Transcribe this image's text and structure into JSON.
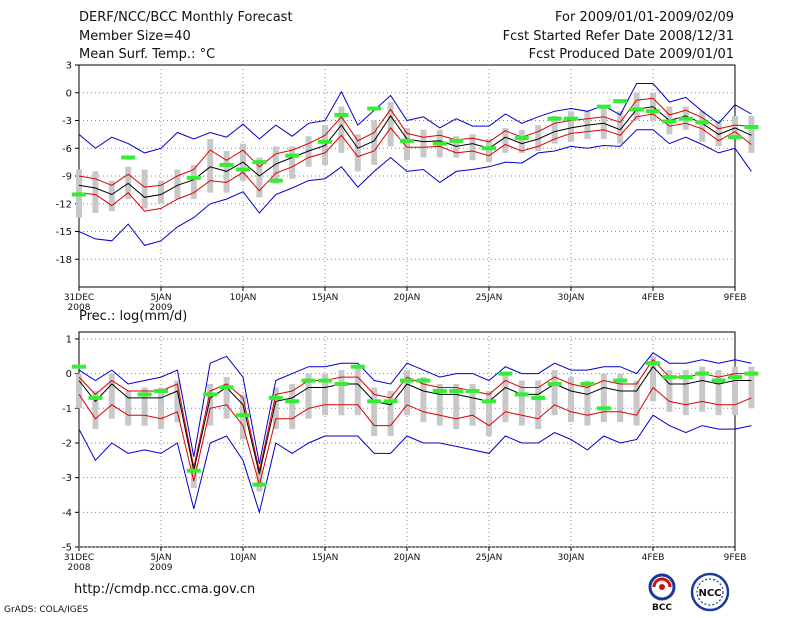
{
  "header": {
    "title": "DERF/NCC/BCC Monthly Forecast",
    "member_size": "Member Size=40",
    "variable_label": "Mean Surf. Temp.: °C",
    "period": "For 2009/01/01-2009/02/09",
    "fcst_started": "Fcst Started Refer Date 2008/12/31",
    "fcst_produced": "Fcst Produced Date 2009/01/01"
  },
  "footer": {
    "url": "http://cmdp.ncc.cma.gov.cn",
    "credit": "GrADS: COLA/IGES",
    "logo_bcc_text": "BCC",
    "logo_ncc_text": "NCC"
  },
  "colors": {
    "gray_bar": "#c8c8c8",
    "green_obs": "#33ee33",
    "blue_envelope": "#0000cc",
    "red_band": "#dd0000",
    "black_mean": "#000000",
    "grid": "#888888"
  },
  "chart_data": [
    {
      "type": "line",
      "title": "Mean Surf. Temp.: °C",
      "x_tick_labels": [
        "31DEC",
        "5JAN",
        "10JAN",
        "15JAN",
        "20JAN",
        "25JAN",
        "30JAN",
        "4FEB",
        "9FEB"
      ],
      "x_tick_days": [
        0,
        5,
        10,
        15,
        20,
        25,
        30,
        35,
        40
      ],
      "x_year_labels": [
        "2008",
        "2009"
      ],
      "ylim": [
        -21,
        3
      ],
      "y_ticks": [
        3,
        0,
        -3,
        -6,
        -9,
        -12,
        -15,
        -18
      ],
      "mean": [
        -10.0,
        -10.3,
        -11.0,
        -9.8,
        -11.3,
        -11.0,
        -10.0,
        -9.4,
        -8.0,
        -8.5,
        -7.5,
        -9.0,
        -7.7,
        -7.0,
        -6.3,
        -5.7,
        -3.5,
        -6.0,
        -5.2,
        -2.5,
        -5.0,
        -5.3,
        -5.2,
        -5.8,
        -5.5,
        -6.0,
        -4.8,
        -5.5,
        -5.0,
        -4.2,
        -3.8,
        -3.5,
        -3.3,
        -4.0,
        -1.8,
        -1.5,
        -3.0,
        -2.5,
        -3.3,
        -4.5,
        -3.8,
        -4.6
      ],
      "upper_red": [
        -9.0,
        -9.3,
        -10.0,
        -8.8,
        -10.2,
        -10.0,
        -9.0,
        -8.3,
        -6.2,
        -7.3,
        -6.2,
        -8.0,
        -6.6,
        -6.2,
        -5.5,
        -4.6,
        -2.6,
        -5.2,
        -4.3,
        -1.8,
        -4.4,
        -4.8,
        -4.6,
        -5.1,
        -4.9,
        -5.3,
        -4.1,
        -4.8,
        -4.2,
        -3.3,
        -3.0,
        -2.8,
        -2.6,
        -3.2,
        -0.8,
        -0.6,
        -2.4,
        -1.9,
        -2.7,
        -3.9,
        -3.5,
        -3.6
      ],
      "lower_red": [
        -10.8,
        -11.0,
        -12.2,
        -10.8,
        -12.8,
        -12.5,
        -11.5,
        -10.8,
        -9.5,
        -9.7,
        -8.6,
        -10.6,
        -8.7,
        -8.0,
        -7.0,
        -6.5,
        -4.6,
        -6.9,
        -6.3,
        -3.8,
        -5.9,
        -5.9,
        -5.8,
        -6.5,
        -6.3,
        -6.8,
        -5.6,
        -6.3,
        -5.8,
        -5.0,
        -4.4,
        -4.2,
        -4.0,
        -4.6,
        -2.6,
        -2.3,
        -3.6,
        -3.3,
        -3.9,
        -5.2,
        -4.2,
        -5.6
      ],
      "upper_blue": [
        -4.5,
        -6.0,
        -4.8,
        -5.5,
        -6.5,
        -6.0,
        -4.3,
        -5.0,
        -4.3,
        -4.8,
        -3.4,
        -5.0,
        -3.5,
        -4.7,
        -3.3,
        -3.0,
        0.1,
        -3.5,
        -1.9,
        -0.3,
        -3.0,
        -2.6,
        -3.8,
        -2.8,
        -3.6,
        -3.6,
        -2.3,
        -3.3,
        -2.6,
        -2.0,
        -1.7,
        -2.0,
        -1.4,
        -2.4,
        1.0,
        1.0,
        -1.0,
        -0.5,
        -2.0,
        -3.3,
        -1.3,
        -2.3
      ],
      "lower_blue": [
        -15.0,
        -15.8,
        -16.0,
        -14.2,
        -16.5,
        -16.0,
        -14.5,
        -13.5,
        -12.0,
        -11.5,
        -10.7,
        -13.0,
        -11.0,
        -10.3,
        -9.5,
        -9.3,
        -8.0,
        -10.2,
        -8.5,
        -7.0,
        -8.5,
        -8.3,
        -9.7,
        -8.5,
        -8.3,
        -8.0,
        -7.5,
        -7.6,
        -6.5,
        -6.3,
        -5.8,
        -6.0,
        -5.7,
        -5.8,
        -4.0,
        -4.0,
        -5.5,
        -4.8,
        -5.6,
        -6.5,
        -6.0,
        -8.5
      ],
      "box_high": [
        -8.3,
        -8.5,
        -9.5,
        -8.0,
        -8.3,
        -9.5,
        -8.3,
        -7.8,
        -5.0,
        -6.3,
        -5.5,
        -7.0,
        -5.8,
        -5.8,
        -4.7,
        -3.5,
        -1.5,
        -4.5,
        -3.0,
        -1.0,
        -3.8,
        -4.0,
        -4.0,
        -4.7,
        -4.5,
        -5.0,
        -3.8,
        -4.0,
        -3.5,
        -2.5,
        -2.0,
        -2.0,
        -1.5,
        -2.0,
        0.0,
        0.0,
        -1.5,
        -1.5,
        -2.0,
        -3.0,
        -2.5,
        -2.5
      ],
      "box_low": [
        -13.5,
        -13.0,
        -12.8,
        -11.5,
        -12.5,
        -12.0,
        -11.5,
        -11.5,
        -10.8,
        -10.8,
        -9.5,
        -11.3,
        -9.8,
        -9.3,
        -8.0,
        -7.8,
        -6.5,
        -8.5,
        -7.8,
        -5.8,
        -7.3,
        -7.0,
        -7.0,
        -7.0,
        -7.3,
        -7.5,
        -6.5,
        -6.5,
        -6.3,
        -5.5,
        -5.3,
        -5.0,
        -5.0,
        -5.5,
        -3.0,
        -3.0,
        -4.5,
        -4.0,
        -5.3,
        -5.8,
        -4.8,
        -6.5
      ],
      "observed": [
        -11.0,
        null,
        null,
        -7.0,
        null,
        null,
        null,
        -9.2,
        null,
        -7.8,
        -8.3,
        -7.5,
        -9.5,
        -6.8,
        null,
        -5.3,
        -2.4,
        null,
        -1.7,
        null,
        -5.2,
        null,
        -5.5,
        -5.2,
        null,
        -6.0,
        null,
        -4.9,
        null,
        -2.8,
        -2.8,
        null,
        -1.5,
        -0.9,
        -1.8,
        -2.0,
        -3.1,
        -2.8,
        -3.2,
        null,
        -4.8,
        -3.7
      ]
    },
    {
      "type": "line",
      "title": "Prec.: log(mm/d)",
      "x_tick_labels": [
        "31DEC",
        "5JAN",
        "10JAN",
        "15JAN",
        "20JAN",
        "25JAN",
        "30JAN",
        "4FEB",
        "9FEB"
      ],
      "x_tick_days": [
        0,
        5,
        10,
        15,
        20,
        25,
        30,
        35,
        40
      ],
      "x_year_labels": [
        "2008",
        "2009"
      ],
      "ylim": [
        -5,
        1.2
      ],
      "y_ticks": [
        1,
        0,
        -1,
        -2,
        -3,
        -4,
        -5
      ],
      "mean": [
        -0.2,
        -0.8,
        -0.3,
        -0.7,
        -0.7,
        -0.7,
        -0.5,
        -2.8,
        -0.7,
        -0.4,
        -0.9,
        -2.9,
        -0.8,
        -0.7,
        -0.4,
        -0.4,
        -0.3,
        -0.3,
        -0.8,
        -0.9,
        -0.3,
        -0.5,
        -0.6,
        -0.6,
        -0.7,
        -0.8,
        -0.4,
        -0.6,
        -0.6,
        -0.3,
        -0.5,
        -0.6,
        -0.4,
        -0.5,
        -0.5,
        0.2,
        -0.3,
        -0.3,
        -0.2,
        -0.3,
        -0.2,
        -0.2
      ],
      "upper_red": [
        -0.1,
        -0.6,
        -0.2,
        -0.5,
        -0.5,
        -0.5,
        -0.3,
        -2.7,
        -0.5,
        -0.3,
        -0.7,
        -2.8,
        -0.6,
        -0.5,
        -0.2,
        -0.2,
        -0.1,
        -0.1,
        -0.6,
        -0.7,
        -0.1,
        -0.3,
        -0.4,
        -0.4,
        -0.5,
        -0.6,
        -0.2,
        -0.4,
        -0.4,
        -0.1,
        -0.3,
        -0.4,
        -0.2,
        -0.3,
        -0.3,
        0.4,
        -0.1,
        -0.1,
        0.0,
        -0.1,
        0.0,
        0.0
      ],
      "lower_red": [
        -0.6,
        -1.3,
        -0.9,
        -1.2,
        -1.2,
        -1.3,
        -1.1,
        -3.1,
        -1.0,
        -0.9,
        -1.5,
        -3.2,
        -1.3,
        -1.3,
        -1.0,
        -0.9,
        -0.9,
        -0.9,
        -1.5,
        -1.5,
        -0.9,
        -1.1,
        -1.2,
        -1.3,
        -1.2,
        -1.5,
        -1.1,
        -1.2,
        -1.3,
        -0.9,
        -1.1,
        -1.2,
        -1.1,
        -1.1,
        -1.2,
        -0.4,
        -0.8,
        -0.9,
        -0.8,
        -0.9,
        -0.9,
        -0.7
      ],
      "upper_blue": [
        0.1,
        -0.2,
        0.1,
        -0.3,
        -0.2,
        -0.1,
        0.1,
        -2.4,
        0.3,
        0.5,
        -0.1,
        -2.6,
        -0.2,
        0.0,
        0.2,
        0.2,
        0.3,
        0.3,
        -0.2,
        -0.3,
        0.3,
        0.1,
        -0.1,
        0.0,
        0.0,
        -0.2,
        0.2,
        0.0,
        0.0,
        0.3,
        0.1,
        0.1,
        0.2,
        0.2,
        0.0,
        0.6,
        0.3,
        0.3,
        0.4,
        0.3,
        0.4,
        0.3
      ],
      "lower_blue": [
        -1.6,
        -2.5,
        -2.0,
        -2.3,
        -2.2,
        -2.3,
        -2.0,
        -3.9,
        -2.0,
        -1.8,
        -2.5,
        -4.0,
        -2.0,
        -2.3,
        -2.0,
        -1.8,
        -1.8,
        -1.8,
        -2.3,
        -2.3,
        -1.8,
        -2.0,
        -2.0,
        -2.1,
        -2.2,
        -2.3,
        -1.8,
        -2.0,
        -2.0,
        -1.7,
        -1.9,
        -2.2,
        -1.8,
        -2.0,
        -1.9,
        -1.2,
        -1.5,
        -1.7,
        -1.5,
        -1.6,
        -1.6,
        -1.5
      ],
      "box_high": [
        0.0,
        -0.5,
        0.0,
        -0.5,
        -0.4,
        -0.4,
        -0.2,
        -2.6,
        -0.3,
        -0.1,
        -0.6,
        -2.7,
        -0.4,
        -0.3,
        0.0,
        0.0,
        0.1,
        0.2,
        -0.4,
        -0.5,
        0.1,
        -0.1,
        -0.3,
        -0.3,
        -0.3,
        -0.5,
        0.0,
        -0.2,
        -0.2,
        0.1,
        -0.1,
        -0.2,
        0.0,
        0.0,
        -0.2,
        0.5,
        0.1,
        0.1,
        0.2,
        0.1,
        0.2,
        0.2
      ],
      "box_low": [
        -1.0,
        -1.6,
        -1.3,
        -1.5,
        -1.5,
        -1.6,
        -1.4,
        -3.3,
        -1.5,
        -1.3,
        -1.9,
        -3.4,
        -1.6,
        -1.6,
        -1.3,
        -1.2,
        -1.2,
        -1.2,
        -1.8,
        -1.8,
        -1.2,
        -1.4,
        -1.5,
        -1.6,
        -1.5,
        -1.8,
        -1.4,
        -1.5,
        -1.6,
        -1.2,
        -1.4,
        -1.5,
        -1.4,
        -1.4,
        -1.5,
        -0.8,
        -1.1,
        -1.2,
        -1.1,
        -1.2,
        -1.2,
        -1.0
      ],
      "observed": [
        0.2,
        -0.7,
        null,
        null,
        -0.6,
        -0.5,
        null,
        -2.8,
        -0.6,
        -0.4,
        -1.2,
        -3.2,
        -0.7,
        -0.8,
        -0.2,
        -0.2,
        -0.3,
        0.2,
        -0.8,
        -0.8,
        -0.2,
        -0.2,
        -0.5,
        -0.5,
        -0.5,
        -0.8,
        0.0,
        -0.6,
        -0.7,
        -0.3,
        null,
        -0.3,
        -1.0,
        -0.2,
        null,
        0.3,
        -0.1,
        -0.1,
        0.0,
        -0.2,
        -0.1,
        0.0
      ]
    }
  ]
}
